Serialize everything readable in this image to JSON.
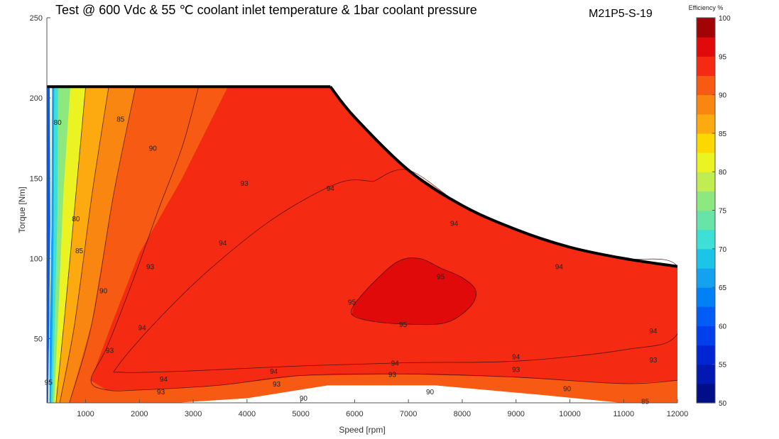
{
  "chart_data": {
    "type": "heatmap",
    "title": "Test @ 600 Vdc & 55 ℃ coolant inlet temperature & 1bar coolant pressure",
    "id_label": "M21P5-S-19",
    "xlabel": "Speed [rpm]",
    "ylabel": "Torque [Nm]",
    "xlim": [
      280,
      12000
    ],
    "ylim": [
      10,
      250
    ],
    "x_ticks": [
      1000,
      2000,
      3000,
      4000,
      5000,
      6000,
      7000,
      8000,
      9000,
      10000,
      11000,
      12000
    ],
    "y_ticks": [
      50,
      100,
      150,
      200,
      250
    ],
    "grid": false,
    "colorbar": {
      "title": "Efficiency %",
      "range": [
        50,
        100
      ],
      "ticks": [
        50,
        55,
        60,
        65,
        70,
        75,
        80,
        85,
        90,
        95,
        100
      ],
      "position": "right",
      "levels": [
        {
          "from": 50,
          "to": 52.5,
          "color": "#000f87"
        },
        {
          "from": 52.5,
          "to": 55,
          "color": "#0019b0"
        },
        {
          "from": 55,
          "to": 57.5,
          "color": "#0026d4"
        },
        {
          "from": 57.5,
          "to": 60,
          "color": "#0040ec"
        },
        {
          "from": 60,
          "to": 62.5,
          "color": "#005cf5"
        },
        {
          "from": 62.5,
          "to": 65,
          "color": "#0080f5"
        },
        {
          "from": 65,
          "to": 67.5,
          "color": "#14a2ee"
        },
        {
          "from": 67.5,
          "to": 70,
          "color": "#1cc4e8"
        },
        {
          "from": 70,
          "to": 72.5,
          "color": "#3ee0d6"
        },
        {
          "from": 72.5,
          "to": 75,
          "color": "#68e4a8"
        },
        {
          "from": 75,
          "to": 77.5,
          "color": "#8ee880"
        },
        {
          "from": 77.5,
          "to": 80,
          "color": "#c0ee52"
        },
        {
          "from": 80,
          "to": 82.5,
          "color": "#ecf322"
        },
        {
          "from": 82.5,
          "to": 85,
          "color": "#fcd800"
        },
        {
          "from": 85,
          "to": 87.5,
          "color": "#fcaa10"
        },
        {
          "from": 87.5,
          "to": 90,
          "color": "#fa8612"
        },
        {
          "from": 90,
          "to": 92.5,
          "color": "#f75a12"
        },
        {
          "from": 92.5,
          "to": 95,
          "color": "#f42a12"
        },
        {
          "from": 95,
          "to": 97.5,
          "color": "#e00a0a"
        },
        {
          "from": 97.5,
          "to": 100,
          "color": "#a00404"
        }
      ]
    },
    "peak_torque_envelope": [
      [
        280,
        207
      ],
      [
        5550,
        207
      ],
      [
        6000,
        188
      ],
      [
        7000,
        155
      ],
      [
        8000,
        133
      ],
      [
        9000,
        118
      ],
      [
        10000,
        107
      ],
      [
        11000,
        100
      ],
      [
        12000,
        95
      ]
    ],
    "efficiency_zones": [
      {
        "efficiency": 60,
        "points": [
          [
            280,
            10
          ],
          [
            280,
            207
          ],
          [
            330,
            207
          ],
          [
            340,
            120
          ],
          [
            320,
            60
          ],
          [
            300,
            10
          ]
        ]
      },
      {
        "efficiency": 65,
        "points": [
          [
            330,
            10
          ],
          [
            340,
            60
          ],
          [
            370,
            120
          ],
          [
            380,
            207
          ],
          [
            420,
            207
          ],
          [
            410,
            120
          ],
          [
            390,
            60
          ],
          [
            360,
            10
          ]
        ]
      },
      {
        "efficiency": 70,
        "points": [
          [
            360,
            10
          ],
          [
            390,
            60
          ],
          [
            410,
            120
          ],
          [
            420,
            207
          ],
          [
            490,
            207
          ],
          [
            480,
            130
          ],
          [
            440,
            70
          ],
          [
            390,
            10
          ]
        ]
      },
      {
        "efficiency": 75,
        "points": [
          [
            390,
            10
          ],
          [
            440,
            70
          ],
          [
            480,
            130
          ],
          [
            490,
            207
          ],
          [
            720,
            207
          ],
          [
            590,
            140
          ],
          [
            490,
            60
          ],
          [
            420,
            10
          ]
        ]
      },
      {
        "efficiency": 80,
        "points": [
          [
            420,
            10
          ],
          [
            490,
            60
          ],
          [
            590,
            140
          ],
          [
            720,
            207
          ],
          [
            1000,
            207
          ],
          [
            820,
            140
          ],
          [
            600,
            60
          ],
          [
            450,
            10
          ]
        ]
      },
      {
        "efficiency": 85,
        "points": [
          [
            450,
            10
          ],
          [
            600,
            60
          ],
          [
            820,
            140
          ],
          [
            1000,
            207
          ],
          [
            1430,
            207
          ],
          [
            1120,
            140
          ],
          [
            800,
            60
          ],
          [
            520,
            10
          ]
        ]
      },
      {
        "efficiency": 87.5,
        "points": [
          [
            520,
            10
          ],
          [
            800,
            60
          ],
          [
            1120,
            140
          ],
          [
            1430,
            207
          ],
          [
            1930,
            207
          ],
          [
            1520,
            140
          ],
          [
            1120,
            60
          ],
          [
            700,
            10
          ]
        ]
      },
      {
        "efficiency": 90,
        "points": [
          [
            700,
            10
          ],
          [
            1120,
            60
          ],
          [
            1520,
            140
          ],
          [
            1930,
            207
          ],
          [
            5550,
            207
          ],
          [
            6000,
            188
          ],
          [
            7000,
            155
          ],
          [
            8000,
            133
          ],
          [
            9000,
            118
          ],
          [
            10000,
            107
          ],
          [
            11000,
            100
          ],
          [
            12000,
            95
          ],
          [
            12000,
            10
          ],
          [
            11000,
            10
          ],
          [
            9500,
            15
          ],
          [
            7500,
            21
          ],
          [
            5500,
            21
          ],
          [
            4000,
            13
          ],
          [
            2600,
            10
          ]
        ]
      },
      {
        "efficiency": 92.5,
        "points": [
          [
            1100,
            24
          ],
          [
            1500,
            60
          ],
          [
            2000,
            103
          ],
          [
            2800,
            150
          ],
          [
            3650,
            207
          ],
          [
            5550,
            207
          ],
          [
            6000,
            188
          ],
          [
            7000,
            155
          ],
          [
            8000,
            133
          ],
          [
            9000,
            118
          ],
          [
            10000,
            107
          ],
          [
            11000,
            100
          ],
          [
            12000,
            95
          ],
          [
            12000,
            24
          ],
          [
            11000,
            22
          ],
          [
            9000,
            26
          ],
          [
            7000,
            28
          ],
          [
            5000,
            27
          ],
          [
            3500,
            21
          ],
          [
            2000,
            18
          ],
          [
            1400,
            18
          ]
        ]
      },
      {
        "efficiency": 95,
        "points": [
          [
            6000,
            72
          ],
          [
            6350,
            85
          ],
          [
            6800,
            98
          ],
          [
            7200,
            100
          ],
          [
            7600,
            94
          ],
          [
            8000,
            88
          ],
          [
            8250,
            80
          ],
          [
            8150,
            70
          ],
          [
            7700,
            60
          ],
          [
            7000,
            59
          ],
          [
            6300,
            61
          ],
          [
            5950,
            65
          ]
        ]
      }
    ],
    "contours": [
      {
        "value": 93,
        "labels": [
          "93",
          "93",
          "93",
          "93",
          "93",
          "93",
          "93"
        ],
        "points": [
          [
            3100,
            207
          ],
          [
            2800,
            170
          ],
          [
            2350,
            130
          ],
          [
            1900,
            88
          ],
          [
            1400,
            45
          ],
          [
            1100,
            24
          ],
          [
            1400,
            18
          ],
          [
            2000,
            18
          ],
          [
            3500,
            21
          ],
          [
            5000,
            27
          ],
          [
            7000,
            28
          ],
          [
            9000,
            26
          ],
          [
            11000,
            22
          ],
          [
            12000,
            24
          ]
        ]
      },
      {
        "value": 94,
        "labels": [
          "94",
          "94",
          "94",
          "94",
          "94",
          "94",
          "94",
          "94",
          "94",
          "94"
        ],
        "points": [
          [
            6350,
            148
          ],
          [
            5700,
            147
          ],
          [
            4500,
            125
          ],
          [
            3300,
            93
          ],
          [
            2350,
            62
          ],
          [
            1600,
            33
          ],
          [
            1700,
            29
          ],
          [
            3000,
            30
          ],
          [
            5000,
            33
          ],
          [
            7000,
            35
          ],
          [
            9000,
            36
          ],
          [
            11000,
            43
          ],
          [
            12000,
            53
          ],
          [
            12000,
            95
          ],
          [
            11000,
            100
          ],
          [
            10000,
            107
          ],
          [
            9000,
            118
          ],
          [
            8000,
            133
          ],
          [
            7000,
            155
          ],
          [
            6350,
            148
          ]
        ]
      },
      {
        "value": 95,
        "labels": [
          "95",
          "95",
          "95",
          "95"
        ],
        "points": [
          [
            6000,
            72
          ],
          [
            6350,
            85
          ],
          [
            6800,
            98
          ],
          [
            7200,
            100
          ],
          [
            7600,
            94
          ],
          [
            8000,
            88
          ],
          [
            8250,
            80
          ],
          [
            8150,
            70
          ],
          [
            7700,
            60
          ],
          [
            7000,
            59
          ],
          [
            6300,
            61
          ],
          [
            5950,
            65
          ],
          [
            6000,
            72
          ]
        ]
      },
      {
        "value": 90,
        "labels": [
          "90",
          "90",
          "90",
          "90",
          "90"
        ],
        "points": [
          [
            1930,
            207
          ],
          [
            1520,
            140
          ],
          [
            1120,
            60
          ],
          [
            700,
            10
          ]
        ]
      },
      {
        "value": 85,
        "labels": [
          "85",
          "85",
          "85"
        ],
        "points": [
          [
            1430,
            207
          ],
          [
            1120,
            140
          ],
          [
            800,
            60
          ],
          [
            520,
            10
          ]
        ]
      },
      {
        "value": 80,
        "labels": [
          "80",
          "80"
        ],
        "points": [
          [
            1000,
            207
          ],
          [
            820,
            140
          ],
          [
            600,
            60
          ],
          [
            450,
            10
          ]
        ]
      }
    ],
    "contour_labels": [
      {
        "text": "85",
        "x": 1650,
        "y": 187
      },
      {
        "text": "90",
        "x": 2250,
        "y": 169
      },
      {
        "text": "93",
        "x": 3950,
        "y": 147
      },
      {
        "text": "94",
        "x": 5550,
        "y": 144
      },
      {
        "text": "94",
        "x": 7850,
        "y": 122
      },
      {
        "text": "94",
        "x": 9800,
        "y": 95
      },
      {
        "text": "80",
        "x": 480,
        "y": 185
      },
      {
        "text": "80",
        "x": 820,
        "y": 125
      },
      {
        "text": "85",
        "x": 880,
        "y": 105
      },
      {
        "text": "90",
        "x": 1330,
        "y": 80
      },
      {
        "text": "93",
        "x": 2200,
        "y": 95
      },
      {
        "text": "94",
        "x": 3550,
        "y": 110
      },
      {
        "text": "94",
        "x": 2050,
        "y": 57
      },
      {
        "text": "93",
        "x": 1450,
        "y": 43
      },
      {
        "text": "95",
        "x": 5950,
        "y": 73
      },
      {
        "text": "95",
        "x": 7600,
        "y": 89
      },
      {
        "text": "95",
        "x": 6900,
        "y": 59
      },
      {
        "text": "94",
        "x": 2450,
        "y": 25
      },
      {
        "text": "94",
        "x": 4500,
        "y": 30
      },
      {
        "text": "94",
        "x": 6750,
        "y": 35
      },
      {
        "text": "94",
        "x": 9000,
        "y": 39
      },
      {
        "text": "94",
        "x": 11550,
        "y": 55
      },
      {
        "text": "93",
        "x": 2400,
        "y": 17
      },
      {
        "text": "93",
        "x": 4550,
        "y": 22
      },
      {
        "text": "93",
        "x": 6700,
        "y": 28
      },
      {
        "text": "93",
        "x": 9000,
        "y": 31
      },
      {
        "text": "93",
        "x": 11550,
        "y": 37
      },
      {
        "text": "90",
        "x": 5050,
        "y": 13
      },
      {
        "text": "90",
        "x": 7400,
        "y": 17
      },
      {
        "text": "90",
        "x": 9950,
        "y": 19
      },
      {
        "text": "85",
        "x": 11400,
        "y": 11
      },
      {
        "text": "95",
        "x": 310,
        "y": 23
      }
    ]
  }
}
